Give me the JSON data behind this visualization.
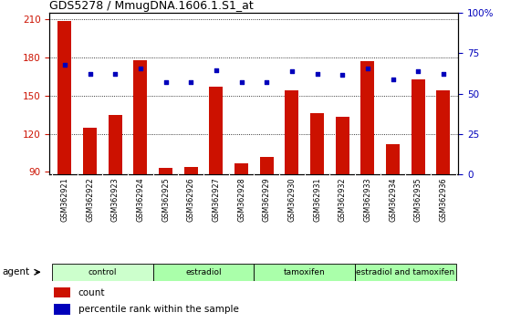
{
  "title": "GDS5278 / MmugDNA.1606.1.S1_at",
  "samples": [
    "GSM362921",
    "GSM362922",
    "GSM362923",
    "GSM362924",
    "GSM362925",
    "GSM362926",
    "GSM362927",
    "GSM362928",
    "GSM362929",
    "GSM362930",
    "GSM362931",
    "GSM362932",
    "GSM362933",
    "GSM362934",
    "GSM362935",
    "GSM362936"
  ],
  "count_values": [
    209,
    125,
    135,
    178,
    93,
    94,
    157,
    97,
    102,
    154,
    136,
    133,
    177,
    112,
    163,
    154
  ],
  "percentile_values": [
    67.7,
    62.2,
    62.2,
    65.4,
    57.1,
    57.1,
    64.6,
    57.1,
    57.1,
    63.8,
    62.2,
    61.4,
    65.4,
    58.7,
    63.8,
    62.2
  ],
  "bar_color": "#cc1100",
  "dot_color": "#0000bb",
  "ylim_left": [
    88,
    215
  ],
  "ylim_right": [
    0,
    100
  ],
  "yticks_left": [
    90,
    120,
    150,
    180,
    210
  ],
  "yticks_right": [
    0,
    25,
    50,
    75,
    100
  ],
  "left_axis_color": "#cc1100",
  "right_axis_color": "#0000bb",
  "groups": [
    {
      "label": "control",
      "start": 0,
      "end": 4,
      "color": "#ccffcc"
    },
    {
      "label": "estradiol",
      "start": 4,
      "end": 8,
      "color": "#aaffaa"
    },
    {
      "label": "tamoxifen",
      "start": 8,
      "end": 12,
      "color": "#aaffaa"
    },
    {
      "label": "estradiol and tamoxifen",
      "start": 12,
      "end": 16,
      "color": "#aaffaa"
    }
  ],
  "agent_label": "agent",
  "legend_count_label": "count",
  "legend_percentile_label": "percentile rank within the sample",
  "bar_width": 0.55
}
